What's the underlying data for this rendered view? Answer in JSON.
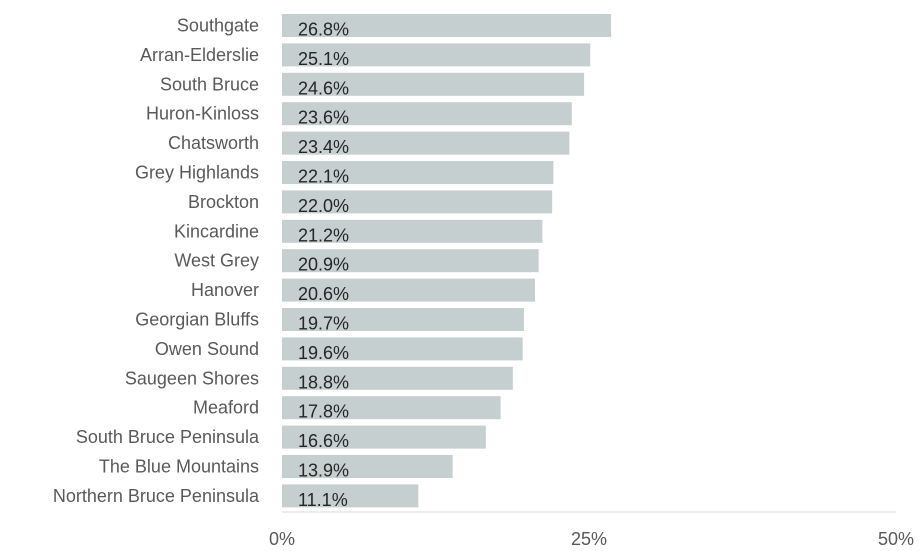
{
  "chart_data": {
    "type": "bar",
    "orientation": "horizontal",
    "categories": [
      "Southgate",
      "Arran-Elderslie",
      "South Bruce",
      "Huron-Kinloss",
      "Chatsworth",
      "Grey Highlands",
      "Brockton",
      "Kincardine",
      "West Grey",
      "Hanover",
      "Georgian Bluffs",
      "Owen Sound",
      "Saugeen Shores",
      "Meaford",
      "South Bruce Peninsula",
      "The Blue Mountains",
      "Northern Bruce Peninsula"
    ],
    "values": [
      26.8,
      25.1,
      24.6,
      23.6,
      23.4,
      22.1,
      22.0,
      21.2,
      20.9,
      20.6,
      19.7,
      19.6,
      18.8,
      17.8,
      16.6,
      13.9,
      11.1
    ],
    "value_labels": [
      "26.8%",
      "25.1%",
      "24.6%",
      "23.6%",
      "23.4%",
      "22.1%",
      "22.0%",
      "21.2%",
      "20.9%",
      "20.6%",
      "19.7%",
      "19.6%",
      "18.8%",
      "17.8%",
      "16.6%",
      "13.9%",
      "11.1%"
    ],
    "xlim": [
      0,
      50
    ],
    "x_ticks": [
      0,
      25,
      50
    ],
    "x_tick_labels": [
      "0%",
      "25%",
      "50%"
    ],
    "title": "",
    "xlabel": "",
    "ylabel": "",
    "grid": false,
    "legend": "none",
    "bar_color": "#c5cfcf",
    "axis_color": "#d9d9d9"
  }
}
